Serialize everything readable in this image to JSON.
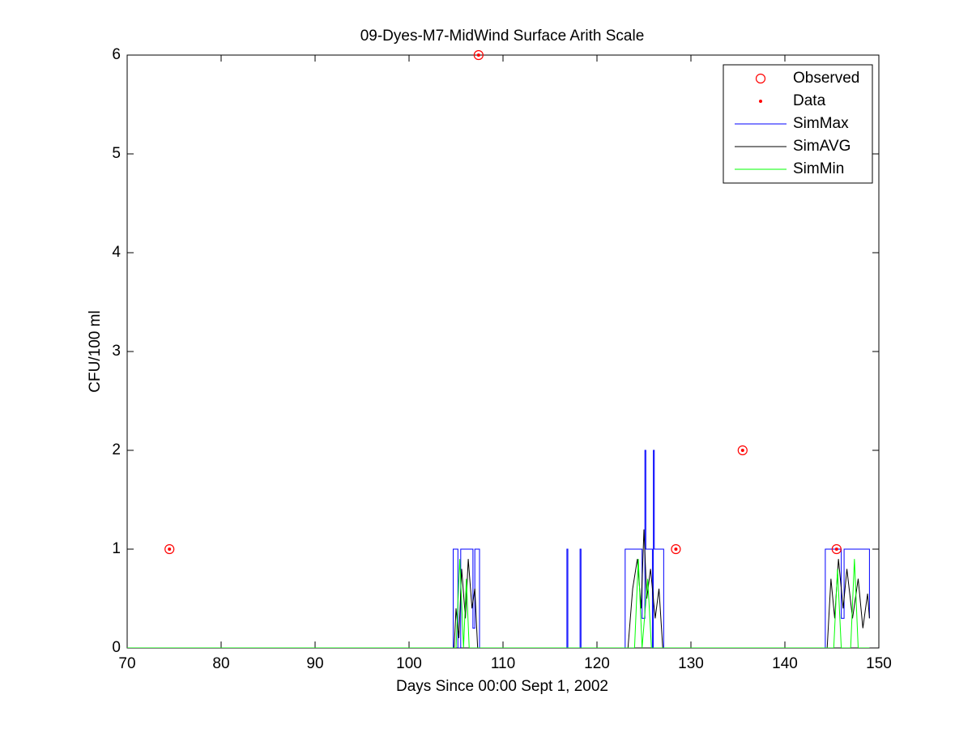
{
  "chart_data": {
    "type": "line",
    "title": "09-Dyes-M7-MidWind Surface Arith Scale",
    "xlabel": "Days Since 00:00 Sept 1, 2002",
    "ylabel": "CFU/100 ml",
    "xlim": [
      70,
      150
    ],
    "ylim": [
      0,
      6
    ],
    "xticks": [
      70,
      80,
      90,
      100,
      110,
      120,
      130,
      140,
      150
    ],
    "yticks": [
      0,
      1,
      2,
      3,
      4,
      5,
      6
    ],
    "legend": "upper right",
    "series": [
      {
        "name": "Observed",
        "color": "#ff0000",
        "marker": "circle",
        "x": [
          74.5,
          107.4,
          128.4,
          135.5,
          145.5
        ],
        "values": [
          1,
          6,
          1,
          2,
          1
        ]
      },
      {
        "name": "Data",
        "color": "#ff0000",
        "marker": "dot",
        "x": [
          74.5,
          107.4,
          128.4,
          135.5,
          145.5
        ],
        "values": [
          1,
          6,
          1,
          2,
          1
        ]
      },
      {
        "name": "SimMax",
        "color": "#0000ff",
        "x": [
          70,
          104.7,
          104.7,
          105.2,
          105.2,
          105.5,
          105.5,
          106.8,
          106.8,
          107.0,
          107.0,
          107.5,
          107.5,
          116.8,
          116.8,
          116.9,
          116.9,
          118.2,
          118.2,
          118.3,
          118.3,
          123.0,
          123.0,
          124.8,
          124.8,
          125.1,
          125.1,
          125.2,
          125.2,
          125.9,
          125.9,
          126.0,
          126.0,
          126.1,
          126.1,
          127.1,
          127.1,
          144.3,
          144.3,
          146.0,
          146.0,
          146.3,
          146.3,
          149.0,
          149.0
        ],
        "values": [
          0,
          0,
          1,
          1,
          0,
          0,
          1,
          1,
          0.2,
          0.2,
          1,
          1,
          0,
          0,
          1,
          1,
          0,
          0,
          1,
          1,
          0,
          0,
          1,
          1,
          0.3,
          0.3,
          2,
          2,
          1,
          1,
          0,
          0,
          2,
          2,
          1,
          1,
          0,
          0,
          1,
          1,
          0.3,
          0.3,
          1,
          1,
          0.3
        ]
      },
      {
        "name": "SimAVG",
        "color": "#000000",
        "x": [
          70,
          104.8,
          105.0,
          105.3,
          105.6,
          106.0,
          106.3,
          106.7,
          107.0,
          107.3,
          123.3,
          123.8,
          124.3,
          124.7,
          125.0,
          125.3,
          125.7,
          126.2,
          126.6,
          127.0,
          144.5,
          144.9,
          145.3,
          145.7,
          146.2,
          146.6,
          147.2,
          147.8,
          148.3,
          148.8,
          149.0
        ],
        "values": [
          0,
          0,
          0.4,
          0.1,
          0.8,
          0.3,
          0.9,
          0.4,
          0.6,
          0,
          0,
          0.6,
          0.9,
          0.4,
          1.2,
          0.5,
          0.8,
          0.3,
          0.6,
          0,
          0,
          0.7,
          0.3,
          0.9,
          0.4,
          0.8,
          0.3,
          0.7,
          0.2,
          0.55,
          0.3
        ]
      },
      {
        "name": "SimMin",
        "color": "#00ff00",
        "x": [
          70,
          105.0,
          105.4,
          105.8,
          106.1,
          106.4,
          124.0,
          124.4,
          124.8,
          125.4,
          125.8,
          145.2,
          145.6,
          146.0,
          147.0,
          147.4,
          147.8,
          149
        ],
        "values": [
          0,
          0,
          0.9,
          0,
          0.7,
          0,
          0,
          0.9,
          0,
          0.7,
          0,
          0,
          0.8,
          0,
          0,
          0.9,
          0,
          0
        ]
      }
    ]
  }
}
